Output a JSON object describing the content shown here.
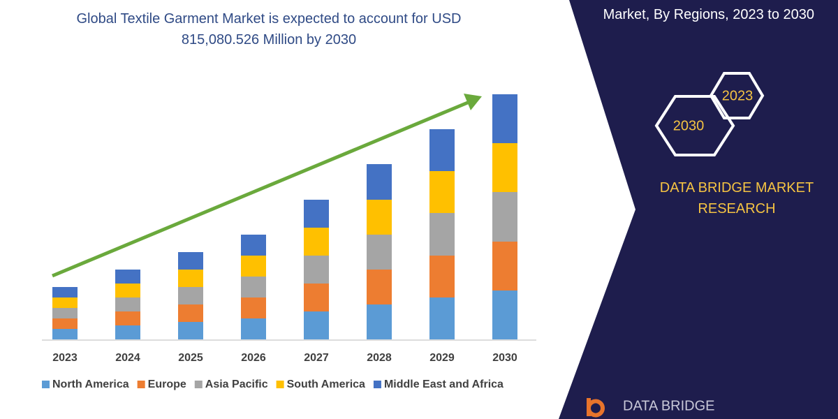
{
  "chart_data": {
    "type": "stacked-bar",
    "title": "Global Textile Garment Market is expected to account for USD 815,080.526 Million by 2030",
    "categories": [
      "2023",
      "2024",
      "2025",
      "2026",
      "2027",
      "2028",
      "2029",
      "2030"
    ],
    "series": [
      {
        "name": "North America",
        "color": "#5b9bd5",
        "values": [
          15,
          20,
          25,
          30,
          40,
          50,
          60,
          70
        ]
      },
      {
        "name": "Europe",
        "color": "#ed7d31",
        "values": [
          15,
          20,
          25,
          30,
          40,
          50,
          60,
          70
        ]
      },
      {
        "name": "Asia Pacific",
        "color": "#a5a5a5",
        "values": [
          15,
          20,
          25,
          30,
          40,
          50,
          61,
          71
        ]
      },
      {
        "name": "South America",
        "color": "#ffc000",
        "values": [
          15,
          20,
          25,
          30,
          40,
          50,
          60,
          70
        ]
      },
      {
        "name": "Middle East and Africa",
        "color": "#4472c4",
        "values": [
          15,
          20,
          25,
          30,
          40,
          51,
          60,
          70
        ]
      }
    ]
  },
  "sidebar": {
    "heading": "Market, By Regions, 2023 to 2030",
    "hex_start": "2023",
    "hex_end": "2030",
    "brand": "DATA BRIDGE MARKET RESEARCH",
    "logo": "DATA BRIDGE"
  }
}
